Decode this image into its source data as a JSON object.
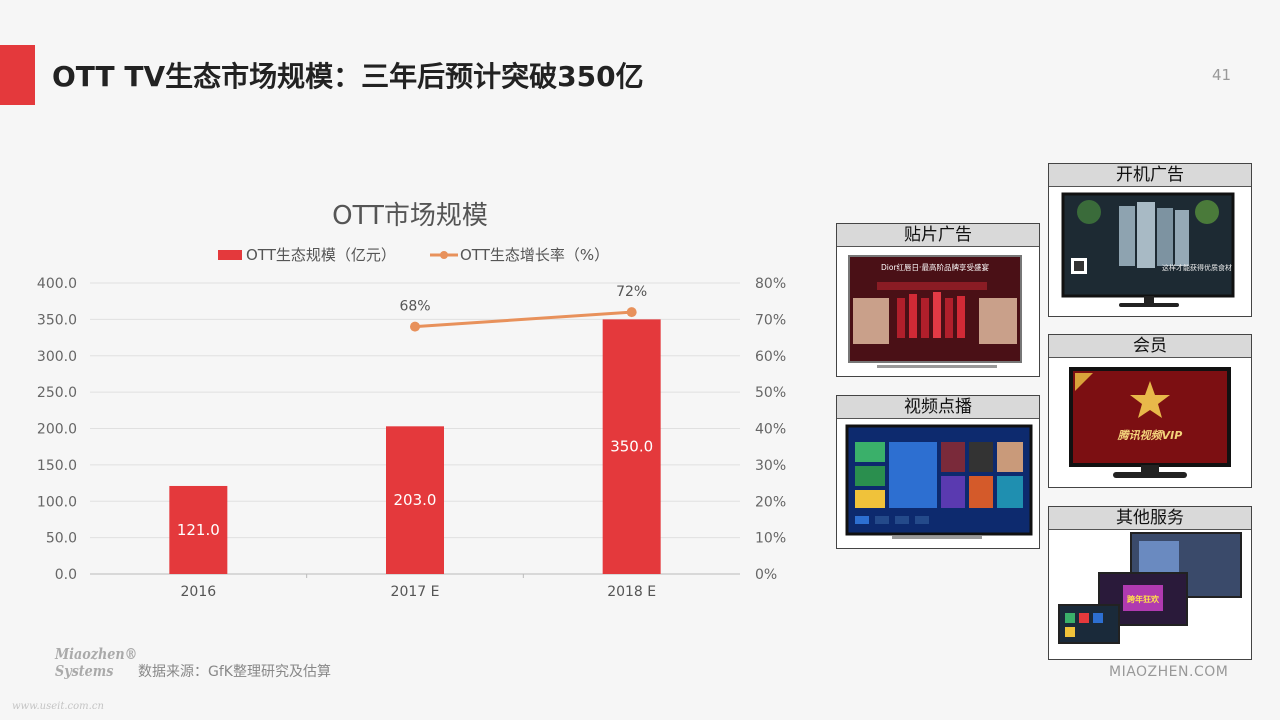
{
  "slide": {
    "title": "OTT TV生态市场规模：三年后预计突破350亿",
    "page_number": "41",
    "accent_color": "#e4393c"
  },
  "chart_data": {
    "type": "bar",
    "title": "OTT市场规模",
    "categories": [
      "2016",
      "2017 E",
      "2018 E"
    ],
    "series": [
      {
        "name": "OTT生态规模（亿元）",
        "kind": "bar",
        "axis": "left",
        "color": "#e4393c",
        "values": [
          121.0,
          203.0,
          350.0
        ],
        "labels": [
          "121.0",
          "203.0",
          "350.0"
        ]
      },
      {
        "name": "OTT生态增长率（%）",
        "kind": "line",
        "axis": "right",
        "color": "#e8915b",
        "values": [
          null,
          68,
          72
        ],
        "labels": [
          "",
          "68%",
          "72%"
        ]
      }
    ],
    "y_left": {
      "range": [
        0,
        400
      ],
      "ticks": [
        "0.0",
        "50.0",
        "100.0",
        "150.0",
        "200.0",
        "250.0",
        "300.0",
        "350.0",
        "400.0"
      ]
    },
    "y_right": {
      "range": [
        0,
        80
      ],
      "ticks": [
        "0%",
        "10%",
        "20%",
        "30%",
        "40%",
        "50%",
        "60%",
        "70%",
        "80%"
      ]
    },
    "grid": true,
    "legend_position": "top"
  },
  "panels": [
    {
      "label": "开机广告",
      "screen_text": "这样才能获得优质食材",
      "icon": "tv-refrigerator-ad-thumbnail"
    },
    {
      "label": "贴片广告",
      "screen_text": "Dior红唇日·最高阶品牌享受盛宴",
      "icon": "tv-lipstick-ad-thumbnail"
    },
    {
      "label": "会员",
      "screen_text": "腾讯视频VIP",
      "icon": "tv-vip-star-thumbnail"
    },
    {
      "label": "视频点播",
      "screen_text": "",
      "icon": "tv-video-on-demand-thumbnail"
    },
    {
      "label": "其他服务",
      "screen_text": "跨年狂欢",
      "icon": "tv-other-services-thumbnail"
    }
  ],
  "footer": {
    "source": "数据来源：GfK整理研究及估算",
    "logo_line1": "Miaozhen®",
    "logo_line2": "Systems",
    "watermark": "www.useit.com.cn",
    "brand": "MIAOZHEN.COM"
  }
}
